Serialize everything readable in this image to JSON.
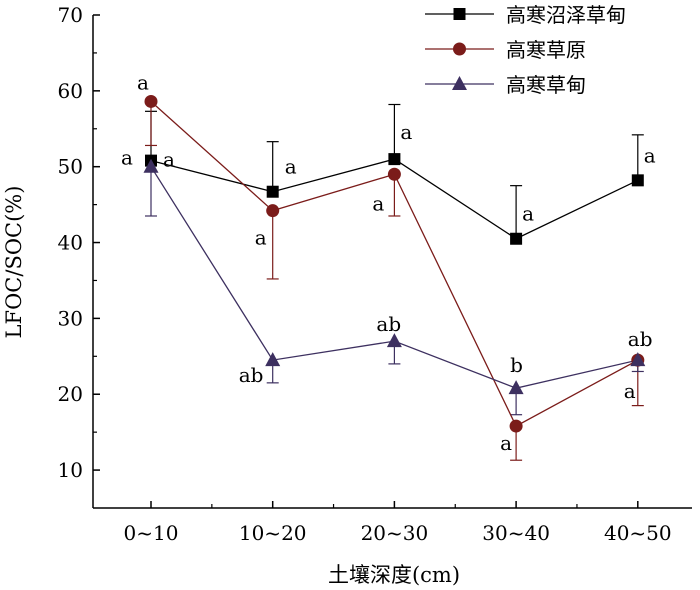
{
  "chart_data": {
    "type": "line",
    "categories": [
      "0~10",
      "10~20",
      "20~30",
      "30~40",
      "40~50"
    ],
    "xlabel": "土壤深度(cm)",
    "ylabel": "LFOC/SOC(%)",
    "ylim": [
      5,
      70
    ],
    "yticks": [
      10,
      20,
      30,
      40,
      50,
      60,
      70
    ],
    "grid": false,
    "legend_position": "top-right",
    "series": [
      {
        "name": "高寒沼泽草甸",
        "marker": "square",
        "color": "#000000",
        "line_color": "#000000",
        "values": [
          50.8,
          46.7,
          51.0,
          40.5,
          48.2
        ],
        "error": [
          6.5,
          6.6,
          7.2,
          7.0,
          6.0
        ],
        "error_dir": [
          "up",
          "up",
          "up",
          "up",
          "up"
        ],
        "sig": [
          "a",
          "a",
          "a",
          "a",
          "a"
        ]
      },
      {
        "name": "高寒草原",
        "marker": "circle",
        "color": "#7b1c1a",
        "line_color": "#7b1c1a",
        "values": [
          58.6,
          44.2,
          49.0,
          15.8,
          24.5
        ],
        "error": [
          5.8,
          9.0,
          5.5,
          4.5,
          6.0
        ],
        "error_dir": [
          "down",
          "down",
          "down",
          "down",
          "down"
        ],
        "sig": [
          "a",
          "a",
          "a",
          "a",
          "a"
        ]
      },
      {
        "name": "高寒草甸",
        "marker": "triangle",
        "color": "#3d3060",
        "line_color": "#3d3060",
        "values": [
          50.0,
          24.5,
          27.0,
          20.8,
          24.5
        ],
        "error": [
          6.5,
          3.0,
          3.0,
          3.5,
          1.5
        ],
        "error_dir": [
          "down",
          "down",
          "down",
          "down",
          "down"
        ],
        "sig": [
          "a",
          "ab",
          "ab",
          "b",
          "ab"
        ]
      }
    ]
  }
}
